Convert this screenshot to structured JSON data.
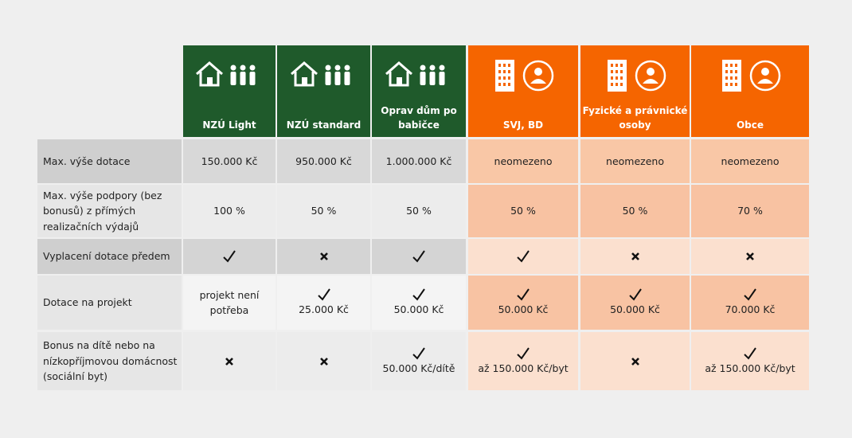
{
  "table": {
    "columns": [
      {
        "label": "NZÚ Light",
        "color": "#1f5a2b",
        "icon": "house"
      },
      {
        "label": "NZÚ standard",
        "color": "#1f5a2b",
        "icon": "house"
      },
      {
        "label": "Oprav dům po babičce",
        "color": "#1f5a2b",
        "icon": "house"
      },
      {
        "label": "SVJ, BD",
        "color": "#f56500",
        "icon": "building"
      },
      {
        "label": "Fyzické a právnické osoby",
        "color": "#f56500",
        "icon": "building"
      },
      {
        "label": "Obce",
        "color": "#f56500",
        "icon": "building"
      }
    ],
    "rows": [
      {
        "label": "Max. výše dotace",
        "cells": [
          {
            "text": "150.000 Kč"
          },
          {
            "text": "950.000 Kč"
          },
          {
            "text": "1.000.000 Kč"
          },
          {
            "text": "neomezeno"
          },
          {
            "text": "neomezeno"
          },
          {
            "text": "neomezeno"
          }
        ]
      },
      {
        "label": "Max. výše podpory (bez bonusů) z přímých realizačních výdajů",
        "cells": [
          {
            "text": "100 %"
          },
          {
            "text": "50 %"
          },
          {
            "text": "50 %"
          },
          {
            "text": "50 %"
          },
          {
            "text": "50 %"
          },
          {
            "text": "70 %"
          }
        ]
      },
      {
        "label": "Vyplacení dotace předem",
        "cells": [
          {
            "mark": "check"
          },
          {
            "mark": "cross"
          },
          {
            "mark": "check"
          },
          {
            "mark": "check"
          },
          {
            "mark": "cross"
          },
          {
            "mark": "cross"
          }
        ]
      },
      {
        "label": "Dotace na projekt",
        "cells": [
          {
            "text": "projekt není potřeba"
          },
          {
            "mark": "check",
            "text": "25.000 Kč"
          },
          {
            "mark": "check",
            "text": "50.000 Kč"
          },
          {
            "mark": "check",
            "text": "50.000 Kč"
          },
          {
            "mark": "check",
            "text": "50.000 Kč"
          },
          {
            "mark": "check",
            "text": "70.000 Kč"
          }
        ]
      },
      {
        "label": "Bonus na dítě nebo na nízkopříjmovou domácnost (sociální byt)",
        "cells": [
          {
            "mark": "cross"
          },
          {
            "mark": "cross"
          },
          {
            "mark": "check",
            "text": "50.000 Kč/dítě"
          },
          {
            "mark": "check",
            "text": "až 150.000 Kč/byt"
          },
          {
            "mark": "cross"
          },
          {
            "mark": "check",
            "text": "až 150.000 Kč/byt"
          }
        ]
      }
    ]
  }
}
